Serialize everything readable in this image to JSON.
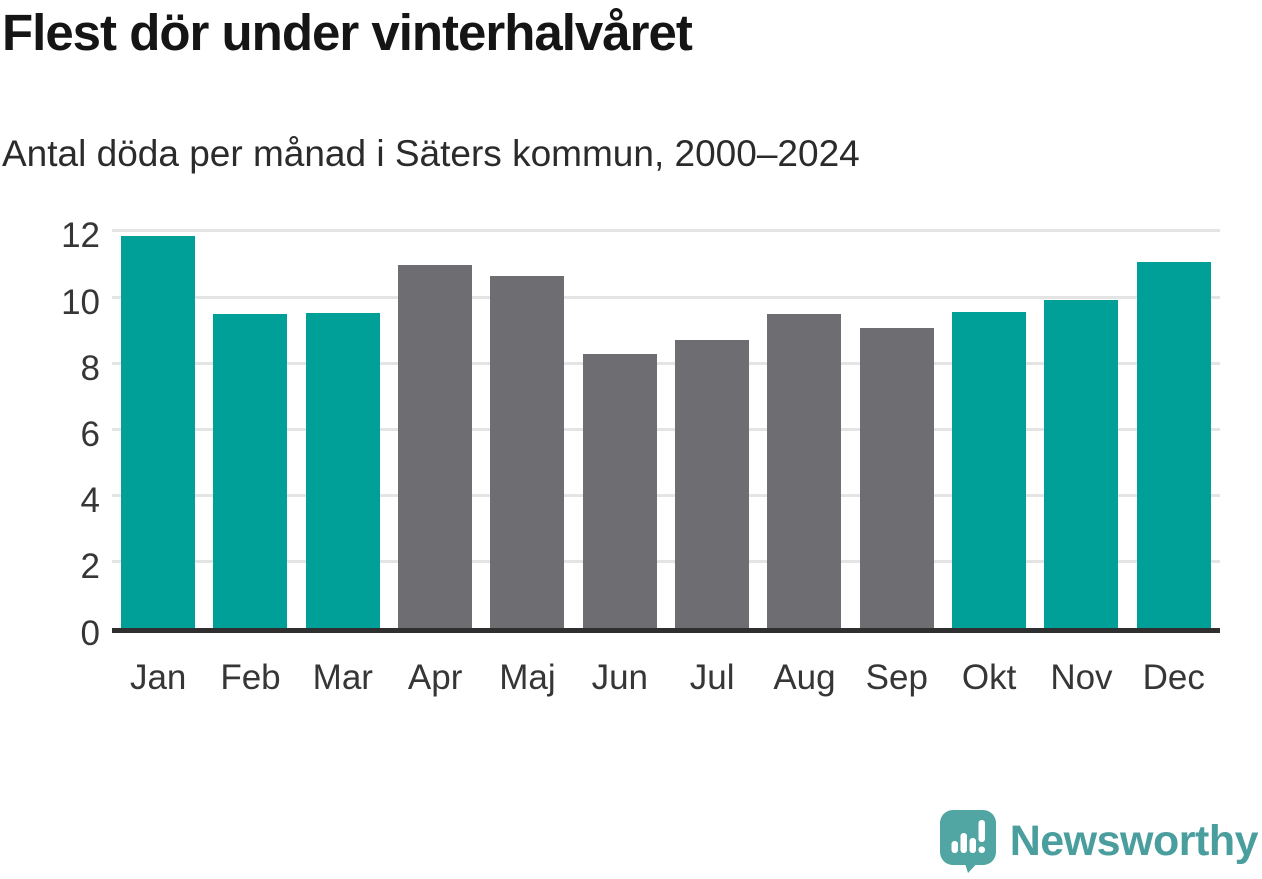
{
  "header": {
    "title": "Flest dör under vinterhalvåret",
    "subtitle": "Antal döda per månad i Säters kommun, 2000–2024"
  },
  "chart_data": {
    "type": "bar",
    "title": "Flest dör under vinterhalvåret",
    "subtitle": "Antal döda per månad i Säters kommun, 2000–2024",
    "categories": [
      "Jan",
      "Feb",
      "Mar",
      "Apr",
      "Maj",
      "Jun",
      "Jul",
      "Aug",
      "Sep",
      "Okt",
      "Nov",
      "Dec"
    ],
    "values": [
      11.85,
      9.5,
      9.52,
      10.96,
      10.65,
      8.28,
      8.7,
      9.5,
      9.07,
      9.56,
      9.91,
      11.07
    ],
    "highlighted_categories": [
      "Jan",
      "Feb",
      "Mar",
      "Okt",
      "Nov",
      "Dec"
    ],
    "highlight_color": "#00a099",
    "base_color": "#6d6d72",
    "xlabel": "",
    "ylabel": "",
    "ylim": [
      0,
      12
    ],
    "yticks": [
      0,
      2,
      4,
      6,
      8,
      10,
      12
    ],
    "grid": true,
    "legend": "none",
    "gridline_color": "#e4e4e4",
    "axis_color": "#2f2f2f"
  },
  "footer": {
    "brand": "Newsworthy",
    "logo_icon": "newsworthy-speech-bubble-bar-chart-icon",
    "brand_color": "#4a9e9d",
    "bubble_color": "#51a5a2"
  }
}
